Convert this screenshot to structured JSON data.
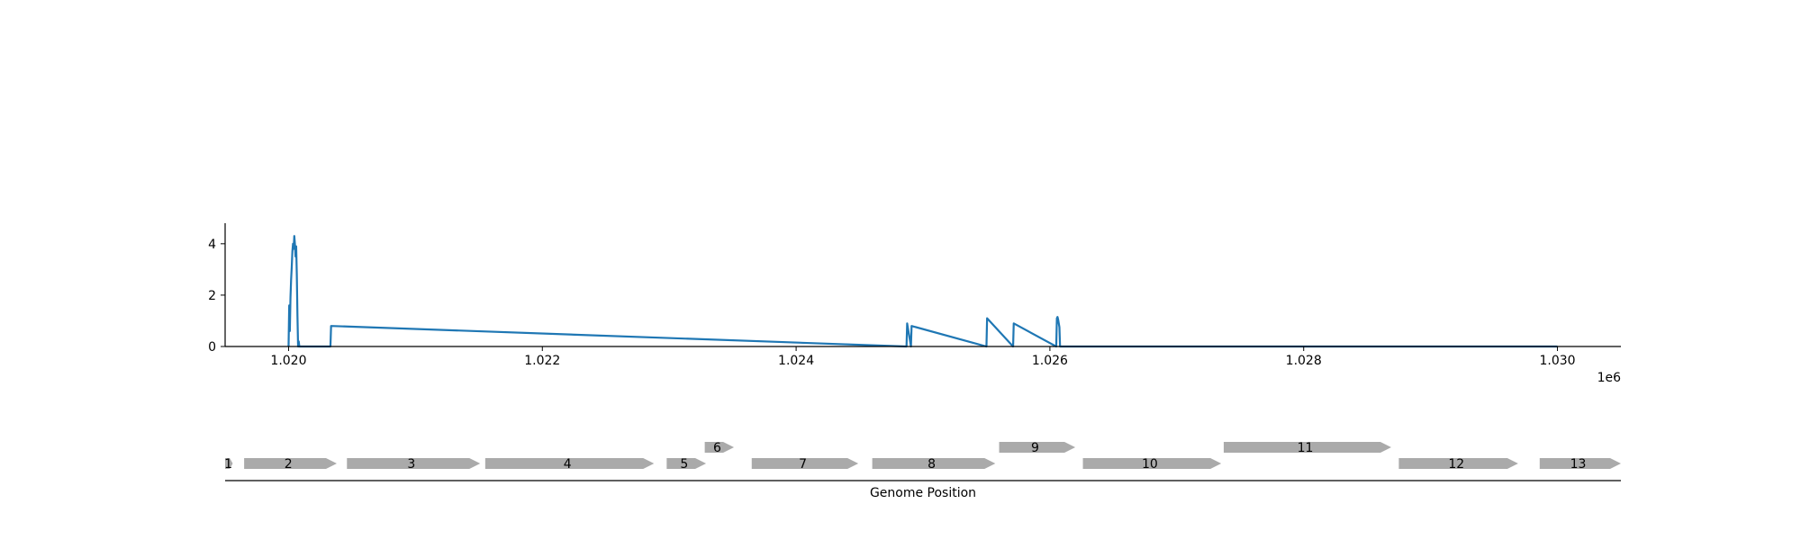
{
  "chart_data": [
    {
      "type": "line",
      "title": "",
      "xlabel": "",
      "ylabel": "",
      "x_offset_label": "1e6",
      "xlim": [
        1019500,
        1030500
      ],
      "ylim": [
        0,
        4.8
      ],
      "xticks": [
        1020000,
        1022000,
        1024000,
        1026000,
        1028000,
        1030000
      ],
      "xtick_labels": [
        "1.020",
        "1.022",
        "1.024",
        "1.026",
        "1.028",
        "1.030"
      ],
      "yticks": [
        0,
        2,
        4
      ],
      "ytick_labels": [
        "0",
        "2",
        "4"
      ],
      "grid": false,
      "series": [
        {
          "color": "#1f77b4",
          "x": [
            1020000,
            1020005,
            1020010,
            1020015,
            1020020,
            1020025,
            1020030,
            1020035,
            1020040,
            1020045,
            1020050,
            1020055,
            1020060,
            1020065,
            1020070,
            1020075,
            1020080,
            1020085,
            1020330,
            1020335,
            1024870,
            1024875,
            1024905,
            1024910,
            1025500,
            1025505,
            1025710,
            1025715,
            1026050,
            1026055,
            1026060,
            1026065,
            1026070,
            1026075,
            1026080,
            1030000
          ],
          "y": [
            0,
            1.6,
            0.6,
            1.9,
            2.6,
            3.1,
            3.7,
            4.0,
            3.8,
            4.3,
            4.0,
            3.5,
            3.9,
            2.8,
            1.2,
            0,
            0.2,
            0,
            0,
            0.8,
            0,
            0.9,
            0,
            0.8,
            0,
            1.1,
            0,
            0.9,
            0,
            1.1,
            1.15,
            1.05,
            0.9,
            0.75,
            0,
            0
          ]
        }
      ]
    },
    {
      "type": "gene_map",
      "xlabel": "Genome Position",
      "xlim": [
        1019500,
        1030500
      ],
      "genes": [
        {
          "label": "1",
          "start": 1019500,
          "end": 1019560,
          "strand": "+",
          "track": 0
        },
        {
          "label": "2",
          "start": 1019650,
          "end": 1020380,
          "strand": "+",
          "track": 0
        },
        {
          "label": "3",
          "start": 1020460,
          "end": 1021510,
          "strand": "+",
          "track": 0
        },
        {
          "label": "4",
          "start": 1021550,
          "end": 1022880,
          "strand": "+",
          "track": 0
        },
        {
          "label": "5",
          "start": 1022980,
          "end": 1023290,
          "strand": "+",
          "track": 0
        },
        {
          "label": "6",
          "start": 1023280,
          "end": 1023510,
          "strand": "+",
          "track": 1
        },
        {
          "label": "7",
          "start": 1023650,
          "end": 1024490,
          "strand": "+",
          "track": 0
        },
        {
          "label": "8",
          "start": 1024600,
          "end": 1025570,
          "strand": "+",
          "track": 0
        },
        {
          "label": "9",
          "start": 1025600,
          "end": 1026200,
          "strand": "+",
          "track": 1
        },
        {
          "label": "10",
          "start": 1026260,
          "end": 1027350,
          "strand": "+",
          "track": 0
        },
        {
          "label": "11",
          "start": 1027370,
          "end": 1028690,
          "strand": "+",
          "track": 1
        },
        {
          "label": "12",
          "start": 1028750,
          "end": 1029690,
          "strand": "+",
          "track": 0
        },
        {
          "label": "13",
          "start": 1029860,
          "end": 1030500,
          "strand": "+",
          "track": 0
        }
      ],
      "gene_color": "#aaaaaa"
    }
  ]
}
